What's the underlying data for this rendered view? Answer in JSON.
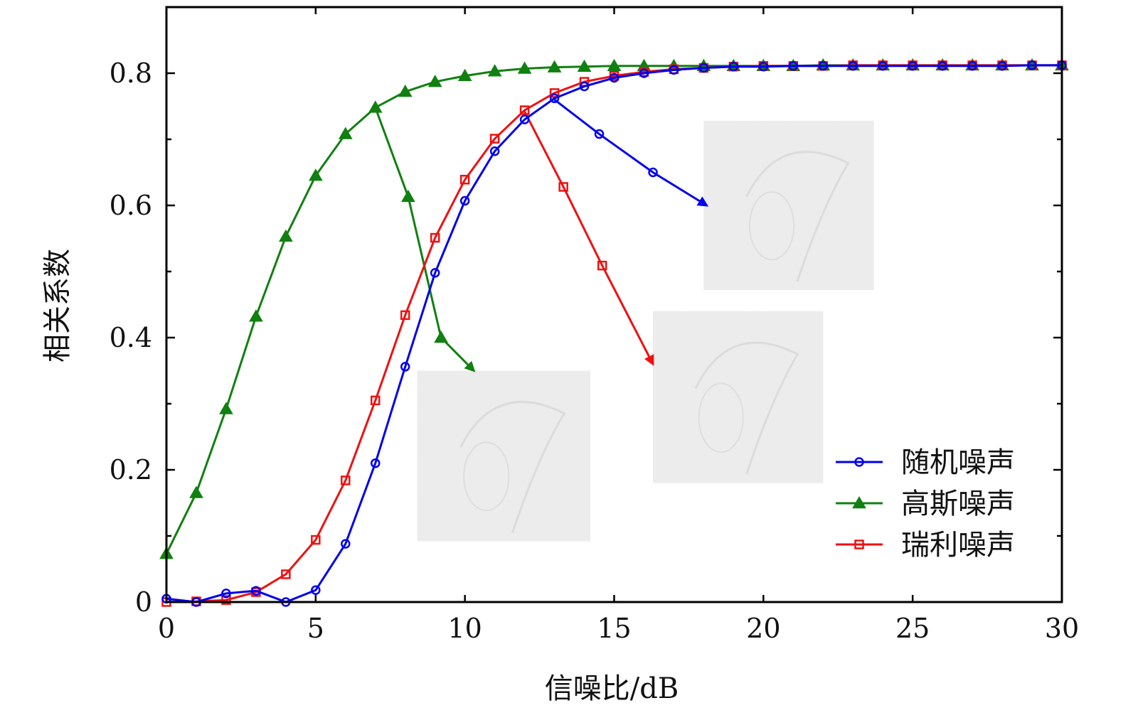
{
  "chart_data": {
    "type": "line",
    "title": "",
    "xlabel": "信噪比/dB",
    "ylabel": "相关系数",
    "xlim": [
      0,
      30
    ],
    "ylim": [
      0,
      0.9
    ],
    "xticks": [
      0,
      5,
      10,
      15,
      20,
      25,
      30
    ],
    "xtick_labels": [
      "0",
      "5",
      "10",
      "15",
      "20",
      "25",
      "30"
    ],
    "yticks": [
      0,
      0.2,
      0.4,
      0.6,
      0.8
    ],
    "ytick_labels": [
      "0",
      "0.2",
      "0.4",
      "0.6",
      "0.8"
    ],
    "grid": false,
    "legend_position": "bottom-right",
    "x": [
      0,
      1,
      2,
      3,
      4,
      5,
      6,
      7,
      8,
      9,
      10,
      11,
      12,
      13,
      14,
      15,
      16,
      17,
      18,
      19,
      20,
      21,
      22,
      23,
      24,
      25,
      26,
      27,
      28,
      29,
      30
    ],
    "series": [
      {
        "name": "随机噪声",
        "color": "#0000ee",
        "marker": "circle",
        "values": [
          0.005,
          0.0,
          0.013,
          0.017,
          0.0,
          0.018,
          0.088,
          0.21,
          0.356,
          0.498,
          0.607,
          0.682,
          0.73,
          0.762,
          0.78,
          0.793,
          0.8,
          0.805,
          0.808,
          0.81,
          0.81,
          0.811,
          0.811,
          0.811,
          0.811,
          0.811,
          0.811,
          0.811,
          0.811,
          0.812,
          0.812
        ]
      },
      {
        "name": "高斯噪声",
        "color": "#108010",
        "marker": "triangle",
        "values": [
          0.073,
          0.165,
          0.292,
          0.432,
          0.553,
          0.645,
          0.708,
          0.748,
          0.772,
          0.787,
          0.796,
          0.803,
          0.807,
          0.809,
          0.81,
          0.811,
          0.811,
          0.811,
          0.811,
          0.811,
          0.811,
          0.811,
          0.812,
          0.812,
          0.812,
          0.812,
          0.812,
          0.812,
          0.812,
          0.812,
          0.812
        ]
      },
      {
        "name": "瑞利噪声",
        "color": "#ee1111",
        "marker": "square",
        "values": [
          0.0,
          0.001,
          0.003,
          0.015,
          0.042,
          0.094,
          0.184,
          0.305,
          0.434,
          0.551,
          0.639,
          0.701,
          0.744,
          0.77,
          0.787,
          0.796,
          0.802,
          0.806,
          0.808,
          0.81,
          0.811,
          0.811,
          0.811,
          0.812,
          0.812,
          0.812,
          0.812,
          0.812,
          0.812,
          0.812,
          0.812
        ]
      }
    ],
    "annotations": [
      {
        "series": "随机噪声",
        "type": "arrow",
        "path": [
          [
            13,
            0.76
          ],
          [
            14.5,
            0.708
          ],
          [
            16.3,
            0.65
          ],
          [
            18.1,
            0.6
          ]
        ],
        "target": "recovered-image-random"
      },
      {
        "series": "高斯噪声",
        "type": "arrow",
        "path": [
          [
            7,
            0.748
          ],
          [
            8.1,
            0.613
          ],
          [
            9.2,
            0.4
          ],
          [
            10.3,
            0.35
          ]
        ],
        "target": "recovered-image-gaussian"
      },
      {
        "series": "瑞利噪声",
        "type": "arrow",
        "path": [
          [
            12,
            0.742
          ],
          [
            13.3,
            0.628
          ],
          [
            14.6,
            0.509
          ],
          [
            16.3,
            0.36
          ]
        ],
        "target": "recovered-image-rayleigh"
      }
    ],
    "inset_images": [
      {
        "name": "recovered-image-gaussian",
        "x_range": [
          8.4,
          14.2
        ],
        "y_range": [
          0.092,
          0.35
        ]
      },
      {
        "name": "recovered-image-rayleigh",
        "x_range": [
          16.3,
          22.0
        ],
        "y_range": [
          0.18,
          0.44
        ]
      },
      {
        "name": "recovered-image-random",
        "x_range": [
          18.0,
          23.7
        ],
        "y_range": [
          0.472,
          0.728
        ]
      }
    ]
  }
}
